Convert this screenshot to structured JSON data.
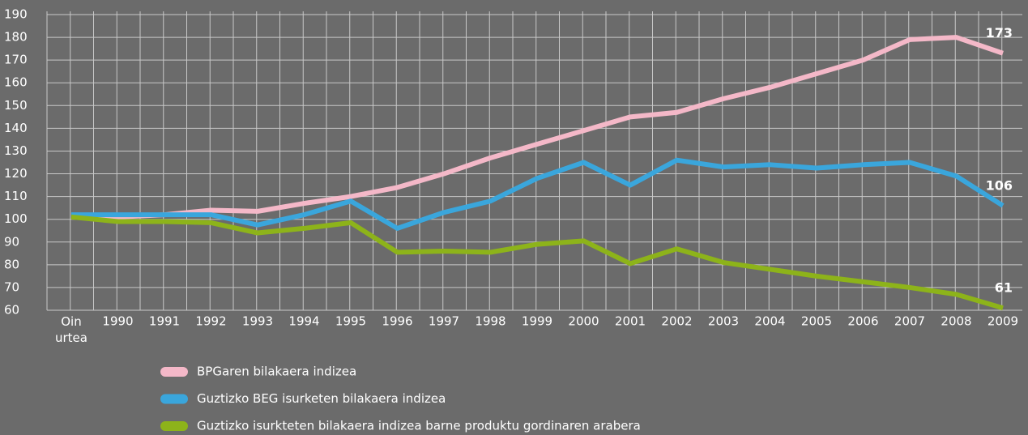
{
  "chart_data": {
    "type": "line",
    "categories": [
      "Oin urtea",
      "1990",
      "1991",
      "1992",
      "1993",
      "1994",
      "1995",
      "1996",
      "1997",
      "1998",
      "1999",
      "2000",
      "2001",
      "2002",
      "2003",
      "2004",
      "2005",
      "2006",
      "2007",
      "2008",
      "2009"
    ],
    "series": [
      {
        "name": "BPGaren bilakaera indizea",
        "color": "#f4b8c8",
        "values": [
          101,
          101,
          102,
          104,
          103.5,
          107,
          110,
          114,
          120,
          127,
          133,
          139,
          145,
          147,
          153,
          158,
          164,
          170,
          179,
          180,
          173
        ]
      },
      {
        "name": "Guztizko BEG isurketen bilakaera indizea",
        "color": "#3aa6dc",
        "values": [
          102,
          102,
          102,
          102,
          97.5,
          102,
          108,
          96,
          103,
          108,
          118,
          125,
          115,
          126,
          123,
          124,
          122.5,
          124,
          125,
          119,
          106
        ]
      },
      {
        "name": "Guztizko isurkteten bilakaera indizea barne produktu gordinaren arabera",
        "color": "#8db31a",
        "values": [
          101,
          99,
          99,
          98.5,
          94,
          96,
          98.5,
          85.5,
          86,
          85.5,
          89,
          90.5,
          80.5,
          87,
          81,
          78,
          75,
          72.5,
          70,
          67,
          61
        ]
      }
    ],
    "ylim": [
      60,
      190
    ],
    "yticks": [
      60,
      70,
      80,
      90,
      100,
      110,
      120,
      130,
      140,
      150,
      160,
      170,
      180,
      190
    ],
    "grid": true
  }
}
